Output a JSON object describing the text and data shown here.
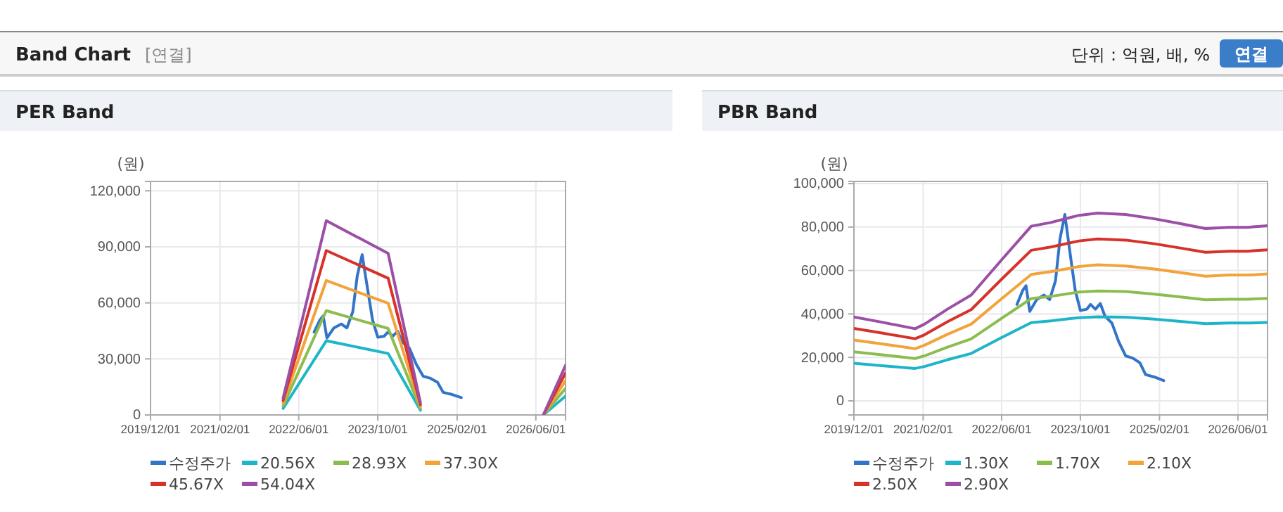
{
  "chart_data": [
    {
      "type": "other",
      "title": "Band Chart",
      "annotations": [
        "[연결]",
        "단위 : 억원, 배, %",
        "연결"
      ]
    },
    {
      "type": "line",
      "title": "PER Band",
      "ylabel": "(원)",
      "legend": "bottom",
      "grid": true,
      "xlim": [
        "2019-12-01",
        "2026-12-01"
      ],
      "xticks": [
        {
          "value": "2019-12-01",
          "label": "2019/12/01"
        },
        {
          "value": "2021-02-01",
          "label": "2021/02/01"
        },
        {
          "value": "2022-06-01",
          "label": "2022/06/01"
        },
        {
          "value": "2023-10-01",
          "label": "2023/10/01"
        },
        {
          "value": "2025-02-01",
          "label": "2025/02/01"
        },
        {
          "value": "2026-06-01",
          "label": "2026/06/01"
        }
      ],
      "ylim": [
        0,
        125000
      ],
      "yticks": [
        {
          "value": 0,
          "label": "0"
        },
        {
          "value": 30000,
          "label": "30,000"
        },
        {
          "value": 60000,
          "label": "60,000"
        },
        {
          "value": 90000,
          "label": "90,000"
        },
        {
          "value": 120000,
          "label": "120,000"
        }
      ],
      "series": [
        {
          "name": "수정주가",
          "color": "#3174c8",
          "x": [
            "2022-09-04",
            "2022-10-10",
            "2022-10-30",
            "2022-11-22",
            "2023-01-04",
            "2023-02-18",
            "2023-03-25",
            "2023-04-30",
            "2023-05-28",
            "2023-06-27",
            "2023-07-25",
            "2023-08-30",
            "2023-10-01",
            "2023-11-10",
            "2023-12-03",
            "2024-01-02",
            "2024-02-01",
            "2024-03-01",
            "2024-04-13",
            "2024-05-25",
            "2024-07-07",
            "2024-08-21",
            "2024-10-03",
            "2024-11-07",
            "2024-12-30",
            "2025-02-27"
          ],
          "values": [
            44400,
            50900,
            53000,
            41200,
            46600,
            48700,
            46600,
            55200,
            74600,
            85800,
            70300,
            50900,
            41600,
            42200,
            44400,
            42200,
            44800,
            39000,
            35800,
            27200,
            20700,
            19600,
            17500,
            12100,
            11000,
            9300
          ]
        },
        {
          "name": "20.56X",
          "color": "#1fb5c9",
          "x": [
            "2022-02-25",
            "2022-11-18",
            "2023-12-04",
            "2024-06-20",
            "2025-06-01",
            "2026-07-20",
            "2026-12-01"
          ],
          "values": [
            3500,
            39700,
            32900,
            2500,
            null,
            200,
            10100
          ]
        },
        {
          "name": "28.93X",
          "color": "#8bbd4e",
          "x": [
            "2022-02-25",
            "2022-11-18",
            "2023-12-04",
            "2024-06-20",
            "2025-06-01",
            "2026-07-20",
            "2026-12-01"
          ],
          "values": [
            4900,
            55800,
            46300,
            3500,
            null,
            300,
            14200
          ]
        },
        {
          "name": "37.30X",
          "color": "#f2a33a",
          "x": [
            "2022-02-25",
            "2022-11-18",
            "2023-12-04",
            "2024-06-20",
            "2025-06-01",
            "2026-07-20",
            "2026-12-01"
          ],
          "values": [
            6300,
            72000,
            59800,
            4500,
            null,
            300,
            18300
          ]
        },
        {
          "name": "45.67X",
          "color": "#d6322a",
          "x": [
            "2022-02-25",
            "2022-11-18",
            "2023-12-04",
            "2024-06-20",
            "2025-06-01",
            "2026-07-20",
            "2026-12-01"
          ],
          "values": [
            7700,
            88000,
            73200,
            5500,
            null,
            400,
            22400
          ]
        },
        {
          "name": "54.04X",
          "color": "#9b4fa5",
          "x": [
            "2022-02-25",
            "2022-11-18",
            "2023-12-04",
            "2024-06-20",
            "2025-06-01",
            "2026-07-20",
            "2026-12-01"
          ],
          "values": [
            9000,
            104000,
            86500,
            6500,
            null,
            500,
            26500
          ]
        }
      ]
    },
    {
      "type": "line",
      "title": "PBR Band",
      "ylabel": "(원)",
      "legend": "bottom",
      "grid": true,
      "xlim": [
        "2019-12-01",
        "2026-12-01"
      ],
      "xticks": [
        {
          "value": "2019-12-01",
          "label": "2019/12/01"
        },
        {
          "value": "2021-02-01",
          "label": "2021/02/01"
        },
        {
          "value": "2022-06-01",
          "label": "2022/06/01"
        },
        {
          "value": "2023-10-01",
          "label": "2023/10/01"
        },
        {
          "value": "2025-02-01",
          "label": "2025/02/01"
        },
        {
          "value": "2026-06-01",
          "label": "2026/06/01"
        }
      ],
      "ylim": [
        -6500,
        101000
      ],
      "yticks": [
        {
          "value": 0,
          "label": "0"
        },
        {
          "value": 20000,
          "label": "20,000"
        },
        {
          "value": 40000,
          "label": "40,000"
        },
        {
          "value": 60000,
          "label": "60,000"
        },
        {
          "value": 80000,
          "label": "80,000"
        },
        {
          "value": 100000,
          "label": "100,000"
        }
      ],
      "series": [
        {
          "name": "수정주가",
          "color": "#3174c8",
          "x": [
            "2022-09-04",
            "2022-10-10",
            "2022-10-30",
            "2022-11-22",
            "2023-01-04",
            "2023-02-18",
            "2023-03-25",
            "2023-04-30",
            "2023-05-28",
            "2023-06-27",
            "2023-07-25",
            "2023-08-30",
            "2023-10-01",
            "2023-11-10",
            "2023-12-03",
            "2024-01-02",
            "2024-02-01",
            "2024-03-01",
            "2024-04-13",
            "2024-05-25",
            "2024-07-07",
            "2024-08-21",
            "2024-10-03",
            "2024-11-07",
            "2024-12-30",
            "2025-02-27"
          ],
          "values": [
            44400,
            50900,
            53000,
            41200,
            46600,
            48700,
            46600,
            55200,
            74600,
            85800,
            70300,
            50900,
            41600,
            42200,
            44400,
            42200,
            44800,
            39000,
            35800,
            27200,
            20700,
            19600,
            17500,
            12100,
            11000,
            9300
          ]
        },
        {
          "name": "1.30X",
          "color": "#1fb5c9",
          "x": [
            "2019-12-01",
            "2020-05-22",
            "2020-12-13",
            "2021-02-09",
            "2021-07-01",
            "2021-11-25",
            "2022-06-01",
            "2022-12-01",
            "2023-04-01",
            "2023-09-22",
            "2024-01-16",
            "2024-07-07",
            "2025-01-01",
            "2025-06-22",
            "2025-11-13",
            "2026-04-07",
            "2026-08-01",
            "2026-12-01"
          ],
          "values": [
            17300,
            16200,
            14900,
            15800,
            18900,
            21800,
            29100,
            36000,
            36800,
            38300,
            38700,
            38500,
            37600,
            36500,
            35500,
            35800,
            35800,
            36100
          ]
        },
        {
          "name": "1.70X",
          "color": "#8bbd4e",
          "x": [
            "2019-12-01",
            "2020-05-22",
            "2020-12-13",
            "2021-02-09",
            "2021-07-01",
            "2021-11-25",
            "2022-06-01",
            "2022-12-01",
            "2023-04-01",
            "2023-09-22",
            "2024-01-16",
            "2024-07-07",
            "2025-01-01",
            "2025-06-22",
            "2025-11-13",
            "2026-04-07",
            "2026-08-01",
            "2026-12-01"
          ],
          "values": [
            22600,
            21200,
            19500,
            20700,
            24700,
            28500,
            38000,
            47100,
            48100,
            50100,
            50600,
            50300,
            49100,
            47700,
            46500,
            46800,
            46800,
            47200
          ]
        },
        {
          "name": "2.10X",
          "color": "#f2a33a",
          "x": [
            "2019-12-01",
            "2020-05-22",
            "2020-12-13",
            "2021-02-09",
            "2021-07-01",
            "2021-11-25",
            "2022-06-01",
            "2022-12-01",
            "2023-04-01",
            "2023-09-22",
            "2024-01-16",
            "2024-07-07",
            "2025-01-01",
            "2025-06-22",
            "2025-11-13",
            "2026-04-07",
            "2026-08-01",
            "2026-12-01"
          ],
          "values": [
            28000,
            26200,
            24000,
            25600,
            30600,
            35300,
            47000,
            58200,
            59500,
            61800,
            62600,
            62100,
            60700,
            58900,
            57400,
            57900,
            57900,
            58400
          ]
        },
        {
          "name": "2.50X",
          "color": "#d6322a",
          "x": [
            "2019-12-01",
            "2020-05-22",
            "2020-12-13",
            "2021-02-09",
            "2021-07-01",
            "2021-11-25",
            "2022-06-01",
            "2022-12-01",
            "2023-04-01",
            "2023-09-22",
            "2024-01-16",
            "2024-07-07",
            "2025-01-01",
            "2025-06-22",
            "2025-11-13",
            "2026-04-07",
            "2026-08-01",
            "2026-12-01"
          ],
          "values": [
            33300,
            31200,
            28600,
            30400,
            36400,
            42000,
            56000,
            69300,
            70800,
            73600,
            74500,
            74000,
            72300,
            70200,
            68400,
            68900,
            68900,
            69500
          ]
        },
        {
          "name": "2.90X",
          "color": "#9b4fa5",
          "x": [
            "2019-12-01",
            "2020-05-22",
            "2020-12-13",
            "2021-02-09",
            "2021-07-01",
            "2021-11-25",
            "2022-06-01",
            "2022-12-01",
            "2023-04-01",
            "2023-09-22",
            "2024-01-16",
            "2024-07-07",
            "2025-01-01",
            "2025-06-22",
            "2025-11-13",
            "2026-04-07",
            "2026-08-01",
            "2026-12-01"
          ],
          "values": [
            38600,
            36200,
            33200,
            35300,
            42200,
            48700,
            64900,
            80400,
            82100,
            85400,
            86400,
            85800,
            83800,
            81400,
            79300,
            79900,
            79900,
            80600
          ]
        }
      ]
    }
  ]
}
